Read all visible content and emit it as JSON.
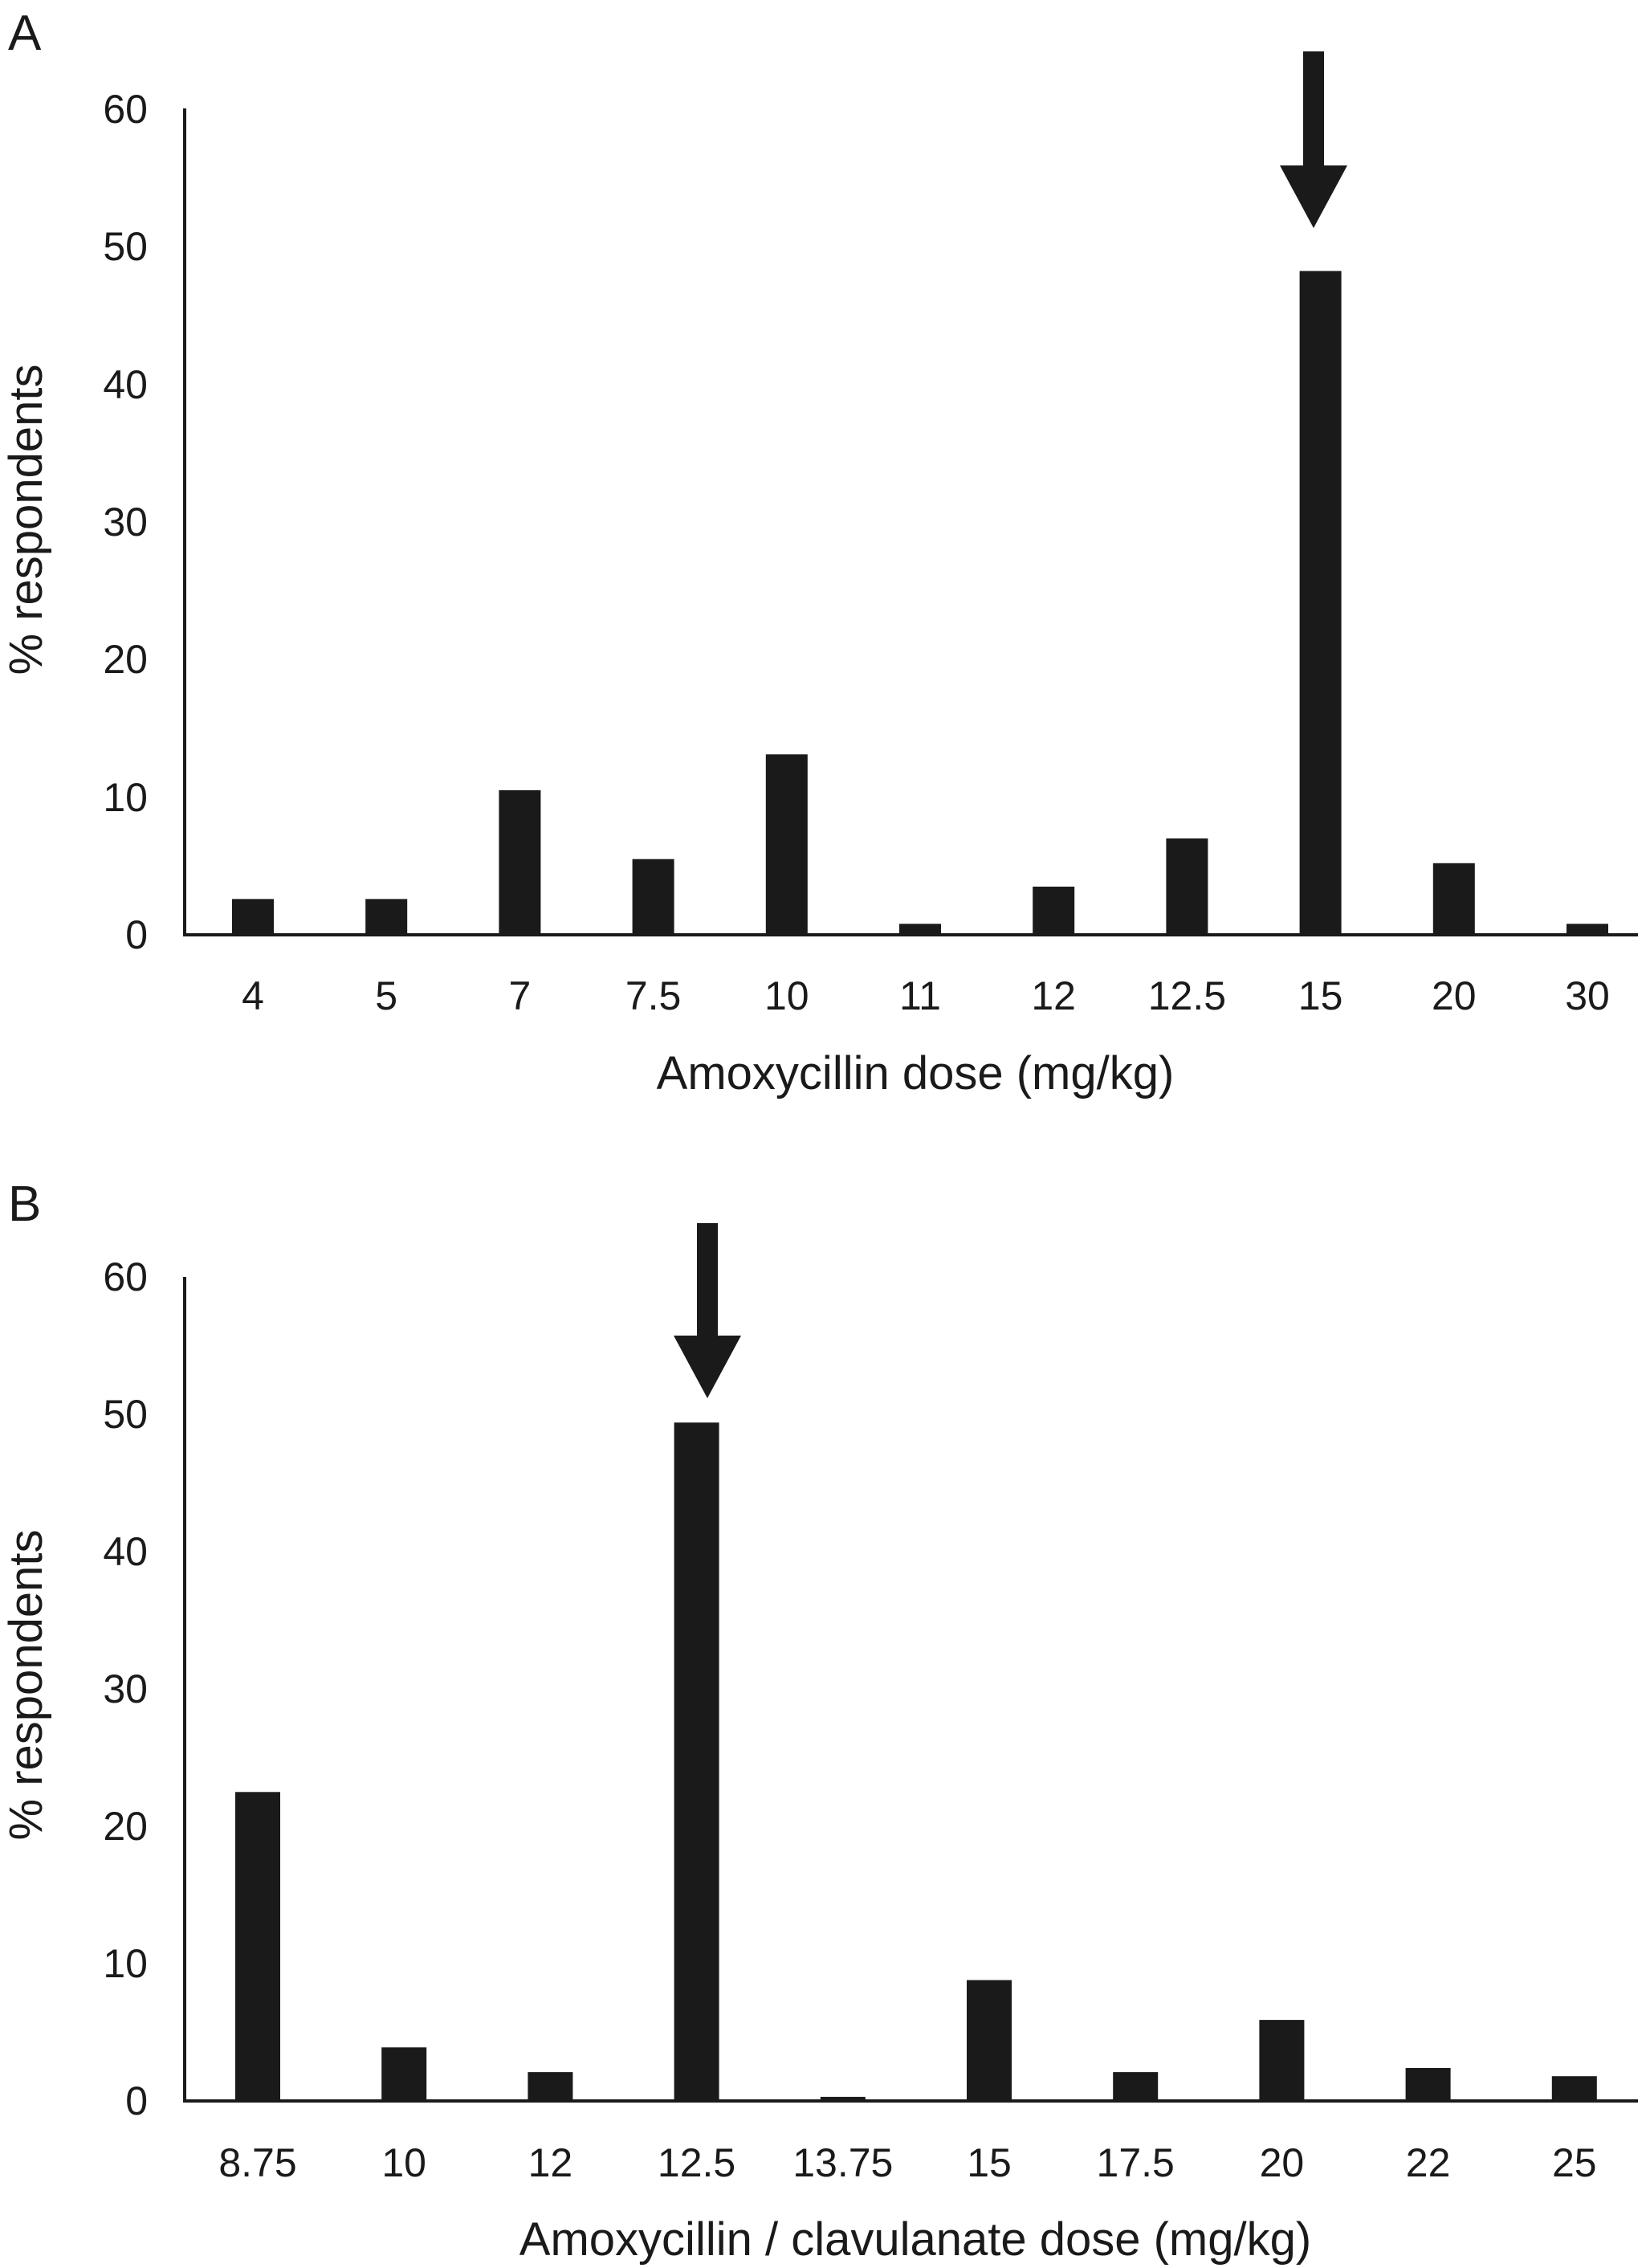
{
  "chart_data": [
    {
      "type": "bar",
      "panel": "A",
      "categories": [
        "4",
        "5",
        "7",
        "7.5",
        "10",
        "11",
        "12",
        "12.5",
        "15",
        "20",
        "30"
      ],
      "values": [
        2.6,
        2.6,
        10.5,
        5.5,
        13.1,
        0.8,
        3.5,
        7.0,
        48.2,
        5.2,
        0.8
      ],
      "xlabel": "Amoxycillin dose (mg/kg)",
      "ylabel": "% respondents",
      "yticks": [
        "0",
        "10",
        "20",
        "30",
        "40",
        "50",
        "60"
      ],
      "ylim": [
        0,
        60
      ],
      "grid": false,
      "highlight": {
        "category": "15",
        "marker": "downward arrow"
      },
      "bar_color": "#1a1a1a"
    },
    {
      "type": "bar",
      "panel": "B",
      "categories": [
        "8.75",
        "10",
        "12",
        "12.5",
        "13.75",
        "15",
        "17.5",
        "20",
        "22",
        "25"
      ],
      "values": [
        22.5,
        3.9,
        2.1,
        49.4,
        0.3,
        8.8,
        2.1,
        5.9,
        2.4,
        1.8
      ],
      "xlabel": "Amoxycillin / clavulanate dose (mg/kg)",
      "ylabel": "% respondents",
      "yticks": [
        "0",
        "10",
        "20",
        "30",
        "40",
        "50",
        "60"
      ],
      "ylim": [
        0,
        60
      ],
      "grid": false,
      "highlight": {
        "category": "12.5",
        "marker": "downward arrow"
      },
      "bar_color": "#1a1a1a"
    }
  ]
}
